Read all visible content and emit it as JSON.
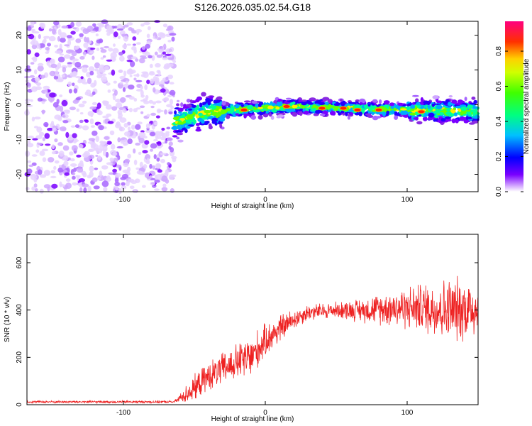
{
  "page_title": "S126.2026.035.02.54.G18",
  "chart_data": [
    {
      "type": "heatmap",
      "title": "S126.2026.035.02.54.G18",
      "xlabel": "Height of straight line (km)",
      "ylabel": "Frequency (Hz)",
      "xlim": [
        -168,
        150
      ],
      "ylim": [
        -25,
        24
      ],
      "xticks": [
        -100,
        0,
        100
      ],
      "yticks": [
        -20,
        -10,
        0,
        10,
        20
      ],
      "colorbar": {
        "label": "Normalized spectral amplitude",
        "range": [
          0,
          0.97
        ],
        "ticks": [
          0.0,
          0.2,
          0.4,
          0.6,
          0.8
        ],
        "tick_labels": [
          "0.0",
          "0.2",
          "0.4",
          "0.6",
          "0.8"
        ]
      },
      "description_regions": {
        "noise_region_x": [
          -168,
          -64
        ],
        "signal_band_center_hz": [
          [
            -64,
            -5
          ],
          [
            -40,
            -2
          ],
          [
            -20,
            -1.5
          ],
          [
            0,
            -1
          ],
          [
            20,
            -0.5
          ],
          [
            60,
            -1
          ],
          [
            100,
            -1.5
          ],
          [
            150,
            -2
          ]
        ],
        "signal_band_halfwidth_hz": 3
      },
      "peak_positions": [
        [
          -15,
          -1.5
        ],
        [
          15,
          -0.5
        ],
        [
          40,
          -1
        ],
        [
          55,
          -1
        ],
        [
          65,
          -1.5
        ],
        [
          80,
          -1.5
        ],
        [
          110,
          -2
        ]
      ]
    },
    {
      "type": "line",
      "xlabel": "Height of straight line (km)",
      "ylabel": "SNR (10 * v/v)",
      "xlim": [
        -168,
        150
      ],
      "ylim": [
        0,
        720
      ],
      "xticks": [
        -100,
        0,
        100
      ],
      "yticks": [
        0,
        200,
        400,
        600
      ],
      "color": "#ee2222",
      "envelope": [
        {
          "x": -168,
          "base": 12,
          "spread": 6
        },
        {
          "x": -64,
          "base": 12,
          "spread": 6
        },
        {
          "x": -52,
          "base": 60,
          "spread": 60
        },
        {
          "x": -40,
          "base": 120,
          "spread": 70
        },
        {
          "x": -20,
          "base": 180,
          "spread": 90
        },
        {
          "x": -10,
          "base": 200,
          "spread": 110
        },
        {
          "x": 0,
          "base": 270,
          "spread": 80
        },
        {
          "x": 10,
          "base": 320,
          "spread": 70
        },
        {
          "x": 20,
          "base": 360,
          "spread": 50
        },
        {
          "x": 30,
          "base": 390,
          "spread": 40
        },
        {
          "x": 50,
          "base": 400,
          "spread": 40
        },
        {
          "x": 70,
          "base": 400,
          "spread": 60
        },
        {
          "x": 90,
          "base": 410,
          "spread": 90
        },
        {
          "x": 110,
          "base": 410,
          "spread": 120
        },
        {
          "x": 130,
          "base": 400,
          "spread": 160
        },
        {
          "x": 150,
          "base": 410,
          "spread": 150
        }
      ]
    }
  ]
}
